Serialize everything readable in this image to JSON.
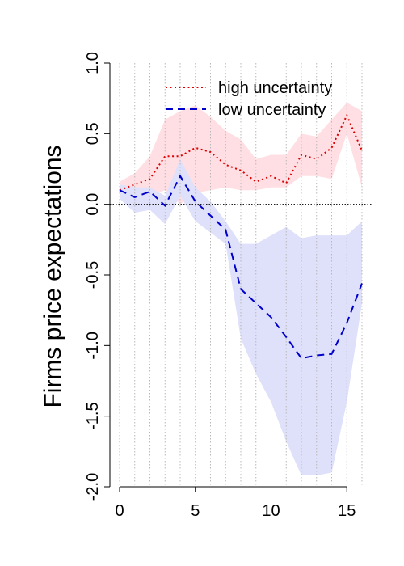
{
  "chart_data": {
    "type": "line",
    "title": "",
    "xlabel": "",
    "ylabel": "Firms price expectations",
    "xlim": [
      -0.64,
      16.64
    ],
    "ylim": [
      -2.0,
      1.0
    ],
    "xticks": [
      0,
      5,
      10,
      15
    ],
    "yticks": [
      -2.0,
      -1.5,
      -1.0,
      -0.5,
      0.0,
      0.5,
      1.0
    ],
    "ytick_labels": [
      "-2.0",
      "-1.5",
      "-1.0",
      "-0.5",
      "0.0",
      "0.5",
      "1.0"
    ],
    "grid": "vertical dotted lines at each integer x",
    "reference_line": 0,
    "legend_position": "top-right",
    "x": [
      0,
      1,
      2,
      3,
      4,
      5,
      6,
      7,
      8,
      9,
      10,
      11,
      12,
      13,
      14,
      15,
      16
    ],
    "series": [
      {
        "name": "high uncertainty",
        "color": "#dd0000",
        "line_style": "dotted",
        "band_color": "#ffdfe3",
        "values": [
          0.1,
          0.14,
          0.18,
          0.34,
          0.34,
          0.4,
          0.37,
          0.28,
          0.24,
          0.16,
          0.2,
          0.15,
          0.35,
          0.32,
          0.4,
          0.63,
          0.38
        ],
        "lower": [
          0.06,
          0.06,
          0.06,
          0.1,
          0.0,
          0.08,
          0.1,
          0.12,
          0.1,
          0.1,
          0.12,
          0.12,
          0.2,
          0.2,
          0.18,
          0.5,
          0.12
        ],
        "upper": [
          0.16,
          0.22,
          0.34,
          0.6,
          0.66,
          0.7,
          0.62,
          0.52,
          0.46,
          0.32,
          0.35,
          0.35,
          0.5,
          0.48,
          0.6,
          0.72,
          0.66
        ]
      },
      {
        "name": "low uncertainty",
        "color": "#0000cc",
        "line_style": "dashed",
        "band_color": "#dfe0fa",
        "values": [
          0.1,
          0.05,
          0.09,
          -0.01,
          0.2,
          0.02,
          -0.08,
          -0.18,
          -0.6,
          -0.7,
          -0.8,
          -0.94,
          -1.09,
          -1.07,
          -1.06,
          -0.84,
          -0.56
        ],
        "lower": [
          0.04,
          -0.06,
          -0.04,
          -0.14,
          0.06,
          -0.12,
          -0.2,
          -0.28,
          -0.95,
          -1.2,
          -1.4,
          -1.68,
          -1.92,
          -1.92,
          -1.9,
          -1.4,
          -0.7
        ],
        "upper": [
          0.14,
          0.12,
          0.12,
          0.06,
          0.32,
          0.12,
          0.02,
          -0.12,
          -0.28,
          -0.28,
          -0.22,
          -0.16,
          -0.24,
          -0.22,
          -0.22,
          -0.22,
          -0.12
        ]
      }
    ]
  }
}
